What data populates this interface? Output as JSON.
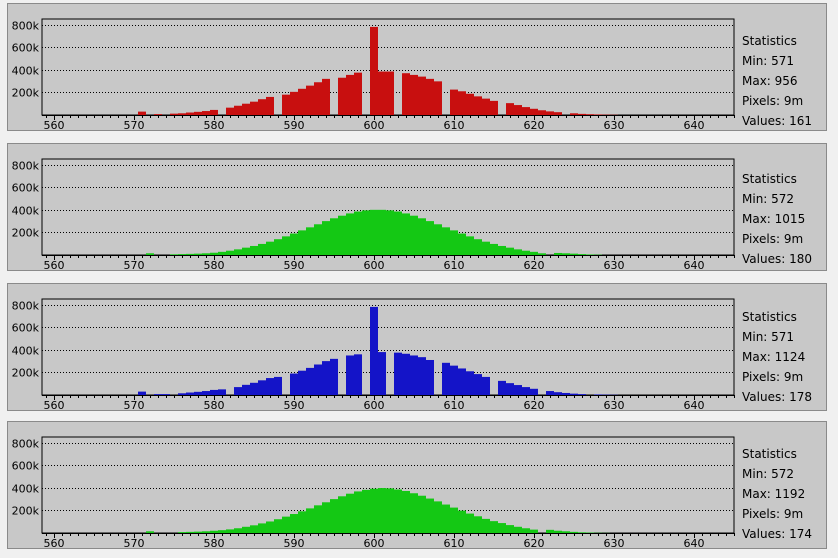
{
  "chart_data": [
    {
      "type": "bar",
      "color": "#c80f0f",
      "xlim": [
        558.5,
        645
      ],
      "ylim": [
        0,
        850000
      ],
      "yticks": [
        "800k",
        "600k",
        "400k",
        "200k"
      ],
      "ytick_values": [
        800000,
        600000,
        400000,
        200000
      ],
      "xticks": [
        "560",
        "570",
        "580",
        "590",
        "600",
        "610",
        "620",
        "630",
        "640"
      ],
      "xtick_values": [
        560,
        570,
        580,
        590,
        600,
        610,
        620,
        630,
        640
      ],
      "x": [
        571,
        572,
        573,
        574,
        575,
        576,
        577,
        578,
        579,
        580,
        581,
        582,
        583,
        584,
        585,
        586,
        587,
        588,
        589,
        590,
        591,
        592,
        593,
        594,
        595,
        596,
        597,
        598,
        599,
        600,
        601,
        602,
        603,
        604,
        605,
        606,
        607,
        608,
        609,
        610,
        611,
        612,
        613,
        614,
        615,
        616,
        617,
        618,
        619,
        620,
        621,
        622,
        623,
        624,
        625,
        626,
        627,
        628,
        629,
        630
      ],
      "values": [
        30000,
        0,
        8000,
        0,
        12000,
        15000,
        22000,
        28000,
        35000,
        45000,
        0,
        65000,
        82000,
        100000,
        118000,
        140000,
        160000,
        0,
        180000,
        205000,
        232000,
        260000,
        290000,
        320000,
        0,
        330000,
        355000,
        375000,
        0,
        780000,
        385000,
        385000,
        0,
        370000,
        355000,
        340000,
        320000,
        298000,
        0,
        225000,
        210000,
        188000,
        165000,
        145000,
        125000,
        0,
        105000,
        88000,
        70000,
        55000,
        42000,
        32000,
        25000,
        0,
        15000,
        10000,
        7000,
        5000,
        3000,
        2000
      ],
      "statistics": {
        "title": "Statistics",
        "min": "Min: 571",
        "max": "Max: 956",
        "pixels": "Pixels: 9m",
        "values": "Values: 161"
      }
    },
    {
      "type": "bar",
      "color": "#14c814",
      "xlim": [
        558.5,
        645
      ],
      "ylim": [
        0,
        850000
      ],
      "yticks": [
        "800k",
        "600k",
        "400k",
        "200k"
      ],
      "ytick_values": [
        800000,
        600000,
        400000,
        200000
      ],
      "xticks": [
        "560",
        "570",
        "580",
        "590",
        "600",
        "610",
        "620",
        "630",
        "640"
      ],
      "xtick_values": [
        560,
        570,
        580,
        590,
        600,
        610,
        620,
        630,
        640
      ],
      "x": [
        572,
        573,
        574,
        575,
        576,
        577,
        578,
        579,
        580,
        581,
        582,
        583,
        584,
        585,
        586,
        587,
        588,
        589,
        590,
        591,
        592,
        593,
        594,
        595,
        596,
        597,
        598,
        599,
        600,
        601,
        602,
        603,
        604,
        605,
        606,
        607,
        608,
        609,
        610,
        611,
        612,
        613,
        614,
        615,
        616,
        617,
        618,
        619,
        620,
        621,
        622,
        623,
        624,
        625,
        626,
        627,
        628
      ],
      "values": [
        15000,
        0,
        0,
        6000,
        8000,
        10000,
        12000,
        15000,
        20000,
        28000,
        38000,
        50000,
        65000,
        80000,
        98000,
        118000,
        140000,
        165000,
        190000,
        218000,
        245000,
        272000,
        300000,
        325000,
        348000,
        368000,
        385000,
        395000,
        400000,
        400000,
        395000,
        385000,
        368000,
        348000,
        325000,
        300000,
        272000,
        245000,
        218000,
        190000,
        165000,
        140000,
        118000,
        98000,
        80000,
        65000,
        50000,
        38000,
        28000,
        15000,
        0,
        18000,
        15000,
        12000,
        8000,
        5000,
        3000
      ],
      "statistics": {
        "title": "Statistics",
        "min": "Min: 572",
        "max": "Max: 1015",
        "pixels": "Pixels: 9m",
        "values": "Values: 180"
      }
    },
    {
      "type": "bar",
      "color": "#1414c8",
      "xlim": [
        558.5,
        645
      ],
      "ylim": [
        0,
        850000
      ],
      "yticks": [
        "800k",
        "600k",
        "400k",
        "200k"
      ],
      "ytick_values": [
        800000,
        600000,
        400000,
        200000
      ],
      "xticks": [
        "560",
        "570",
        "580",
        "590",
        "600",
        "610",
        "620",
        "630",
        "640"
      ],
      "xtick_values": [
        560,
        570,
        580,
        590,
        600,
        610,
        620,
        630,
        640
      ],
      "x": [
        571,
        572,
        573,
        574,
        575,
        576,
        577,
        578,
        579,
        580,
        581,
        582,
        583,
        584,
        585,
        586,
        587,
        588,
        589,
        590,
        591,
        592,
        593,
        594,
        595,
        596,
        597,
        598,
        599,
        600,
        601,
        602,
        603,
        604,
        605,
        606,
        607,
        608,
        609,
        610,
        611,
        612,
        613,
        614,
        615,
        616,
        617,
        618,
        619,
        620,
        621,
        622,
        623,
        624,
        625,
        626,
        627,
        628,
        629,
        630
      ],
      "values": [
        30000,
        0,
        8000,
        8000,
        0,
        15000,
        22000,
        28000,
        35000,
        45000,
        50000,
        0,
        70000,
        90000,
        108000,
        130000,
        150000,
        160000,
        0,
        190000,
        215000,
        240000,
        270000,
        300000,
        320000,
        0,
        350000,
        360000,
        0,
        780000,
        380000,
        0,
        375000,
        365000,
        350000,
        335000,
        310000,
        0,
        285000,
        260000,
        235000,
        210000,
        185000,
        160000,
        0,
        125000,
        105000,
        88000,
        70000,
        55000,
        0,
        35000,
        25000,
        18000,
        12000,
        8000,
        0,
        5000,
        3000,
        2000
      ],
      "statistics": {
        "title": "Statistics",
        "min": "Min: 571",
        "max": "Max: 1124",
        "pixels": "Pixels: 9m",
        "values": "Values: 178"
      }
    },
    {
      "type": "bar",
      "color": "#14c814",
      "xlim": [
        558.5,
        645
      ],
      "ylim": [
        0,
        850000
      ],
      "yticks": [
        "800k",
        "600k",
        "400k",
        "200k"
      ],
      "ytick_values": [
        800000,
        600000,
        400000,
        200000
      ],
      "xticks": [
        "560",
        "570",
        "580",
        "590",
        "600",
        "610",
        "620",
        "630",
        "640"
      ],
      "xtick_values": [
        560,
        570,
        580,
        590,
        600,
        610,
        620,
        630,
        640
      ],
      "x": [
        572,
        573,
        574,
        575,
        576,
        577,
        578,
        579,
        580,
        581,
        582,
        583,
        584,
        585,
        586,
        587,
        588,
        589,
        590,
        591,
        592,
        593,
        594,
        595,
        596,
        597,
        598,
        599,
        600,
        601,
        602,
        603,
        604,
        605,
        606,
        607,
        608,
        609,
        610,
        611,
        612,
        613,
        614,
        615,
        616,
        617,
        618,
        619,
        620,
        621,
        622,
        623,
        624,
        625,
        626,
        627,
        628,
        629
      ],
      "values": [
        15000,
        0,
        0,
        0,
        8000,
        10000,
        12000,
        15000,
        20000,
        25000,
        32000,
        42000,
        55000,
        68000,
        85000,
        102000,
        122000,
        145000,
        168000,
        192000,
        218000,
        245000,
        272000,
        300000,
        325000,
        348000,
        368000,
        382000,
        392000,
        398000,
        395000,
        385000,
        372000,
        352000,
        330000,
        305000,
        280000,
        252000,
        225000,
        198000,
        172000,
        148000,
        125000,
        105000,
        88000,
        70000,
        55000,
        42000,
        30000,
        0,
        28000,
        20000,
        15000,
        10000,
        6000,
        4000,
        2000,
        1000
      ],
      "statistics": {
        "title": "Statistics",
        "min": "Min: 572",
        "max": "Max: 1192",
        "pixels": "Pixels: 9m",
        "values": "Values: 174"
      }
    }
  ]
}
